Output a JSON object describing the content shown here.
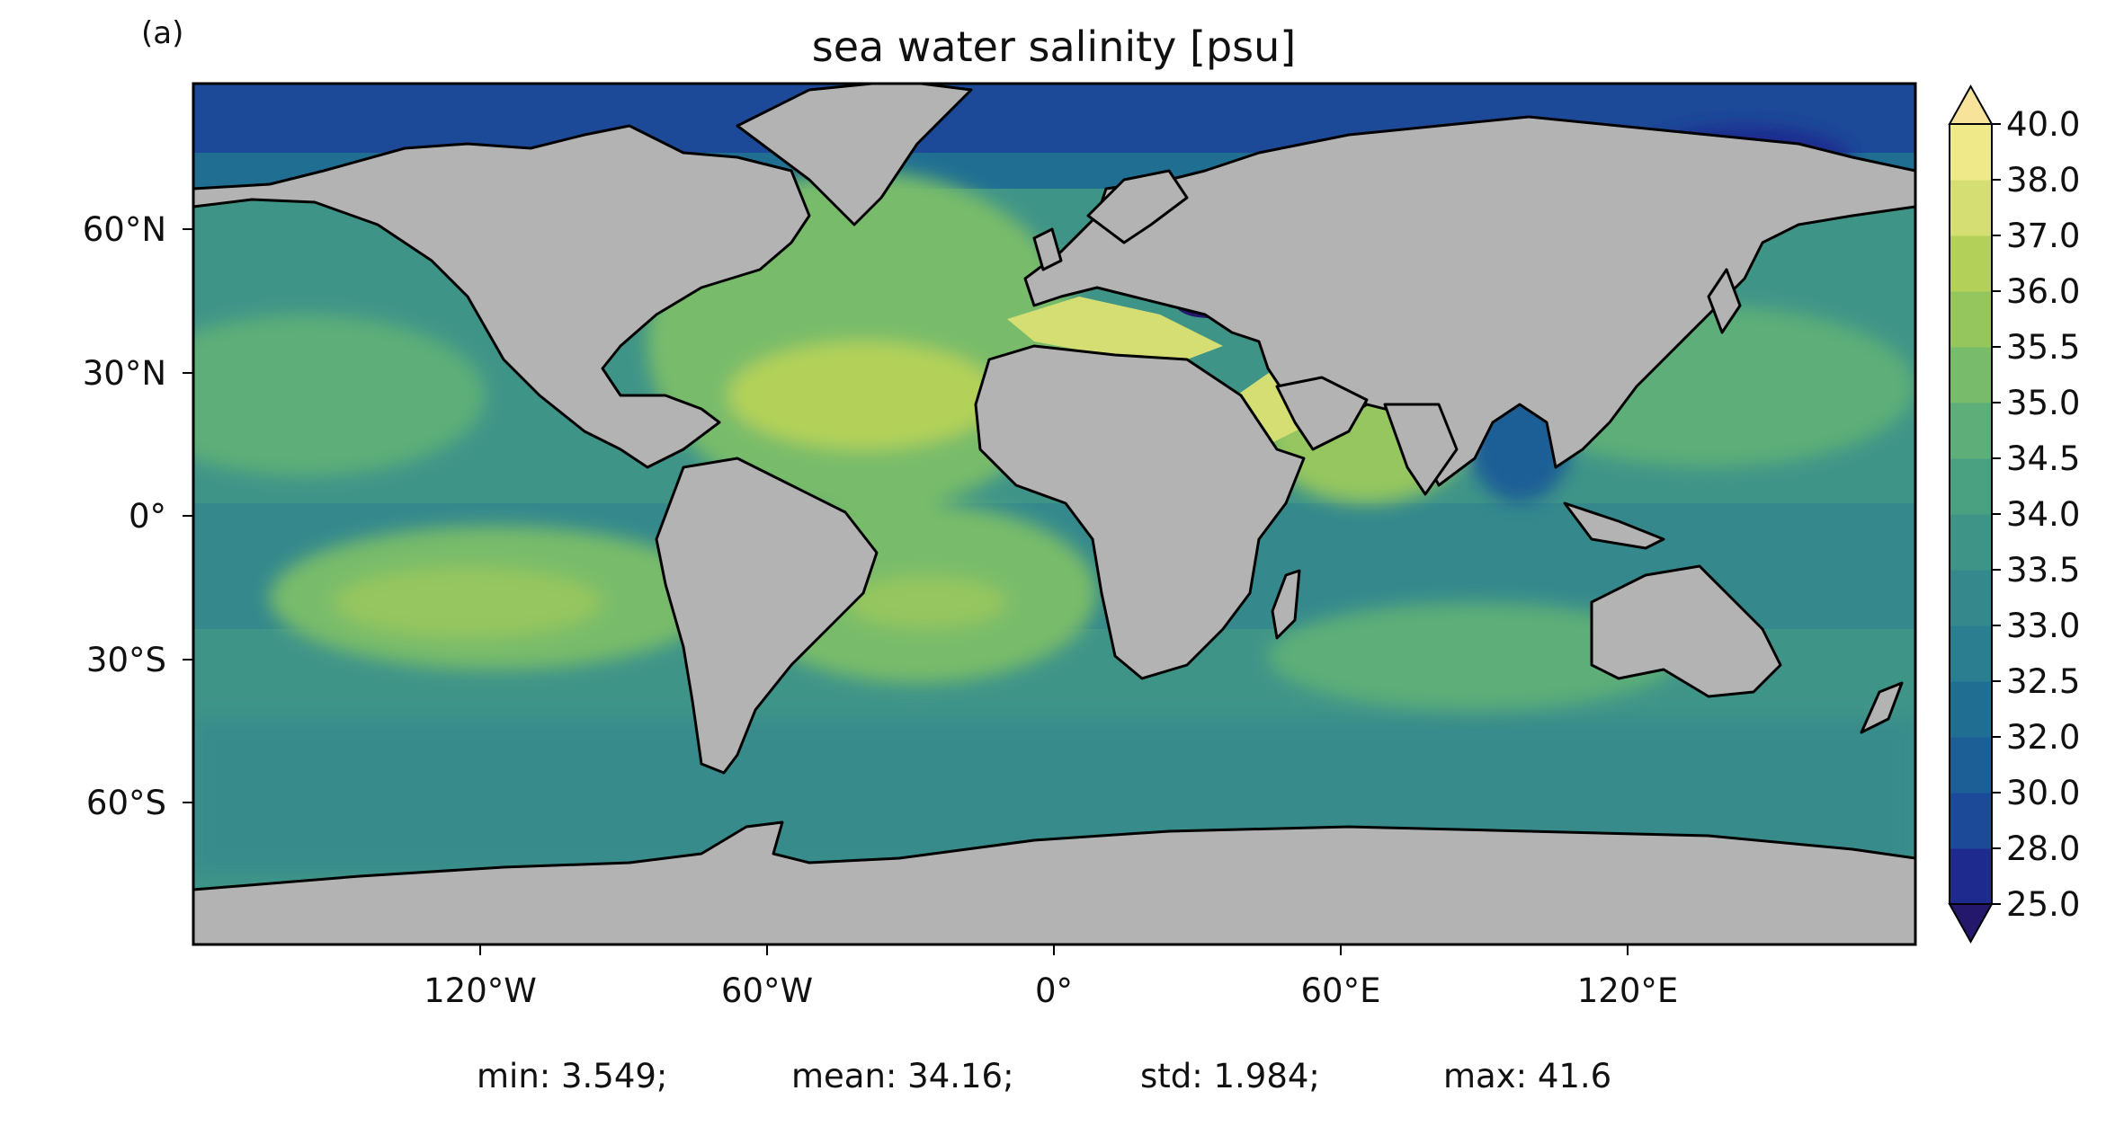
{
  "panel_label": "(a)",
  "title": "sea water salinity [psu]",
  "lat_ticks": [
    "60°N",
    "30°N",
    "0°",
    "30°S",
    "60°S"
  ],
  "lon_ticks": [
    "120°W",
    "60°W",
    "0°",
    "60°E",
    "120°E"
  ],
  "colorbar": {
    "labels": [
      "40.0",
      "38.0",
      "37.0",
      "36.0",
      "35.5",
      "35.0",
      "34.5",
      "34.0",
      "33.5",
      "33.0",
      "32.5",
      "32.0",
      "30.0",
      "28.0",
      "25.0"
    ],
    "extend": "both",
    "colors": [
      "#23186b",
      "#1f2a8f",
      "#1d4a98",
      "#1b5f96",
      "#206f92",
      "#2a7e8f",
      "#35898c",
      "#3f9488",
      "#4aa182",
      "#5dae78",
      "#78bb6a",
      "#95c65e",
      "#b3d158",
      "#d4de72",
      "#efe98a",
      "#f8e39b"
    ]
  },
  "stats": {
    "min": "min: 3.549;",
    "mean": "mean: 34.16;",
    "std": "std: 1.984;",
    "max": "max: 41.6"
  },
  "colors": {
    "land": "#b3b3b3",
    "ocean_base": "#3f9488",
    "coast": "#000000"
  }
}
